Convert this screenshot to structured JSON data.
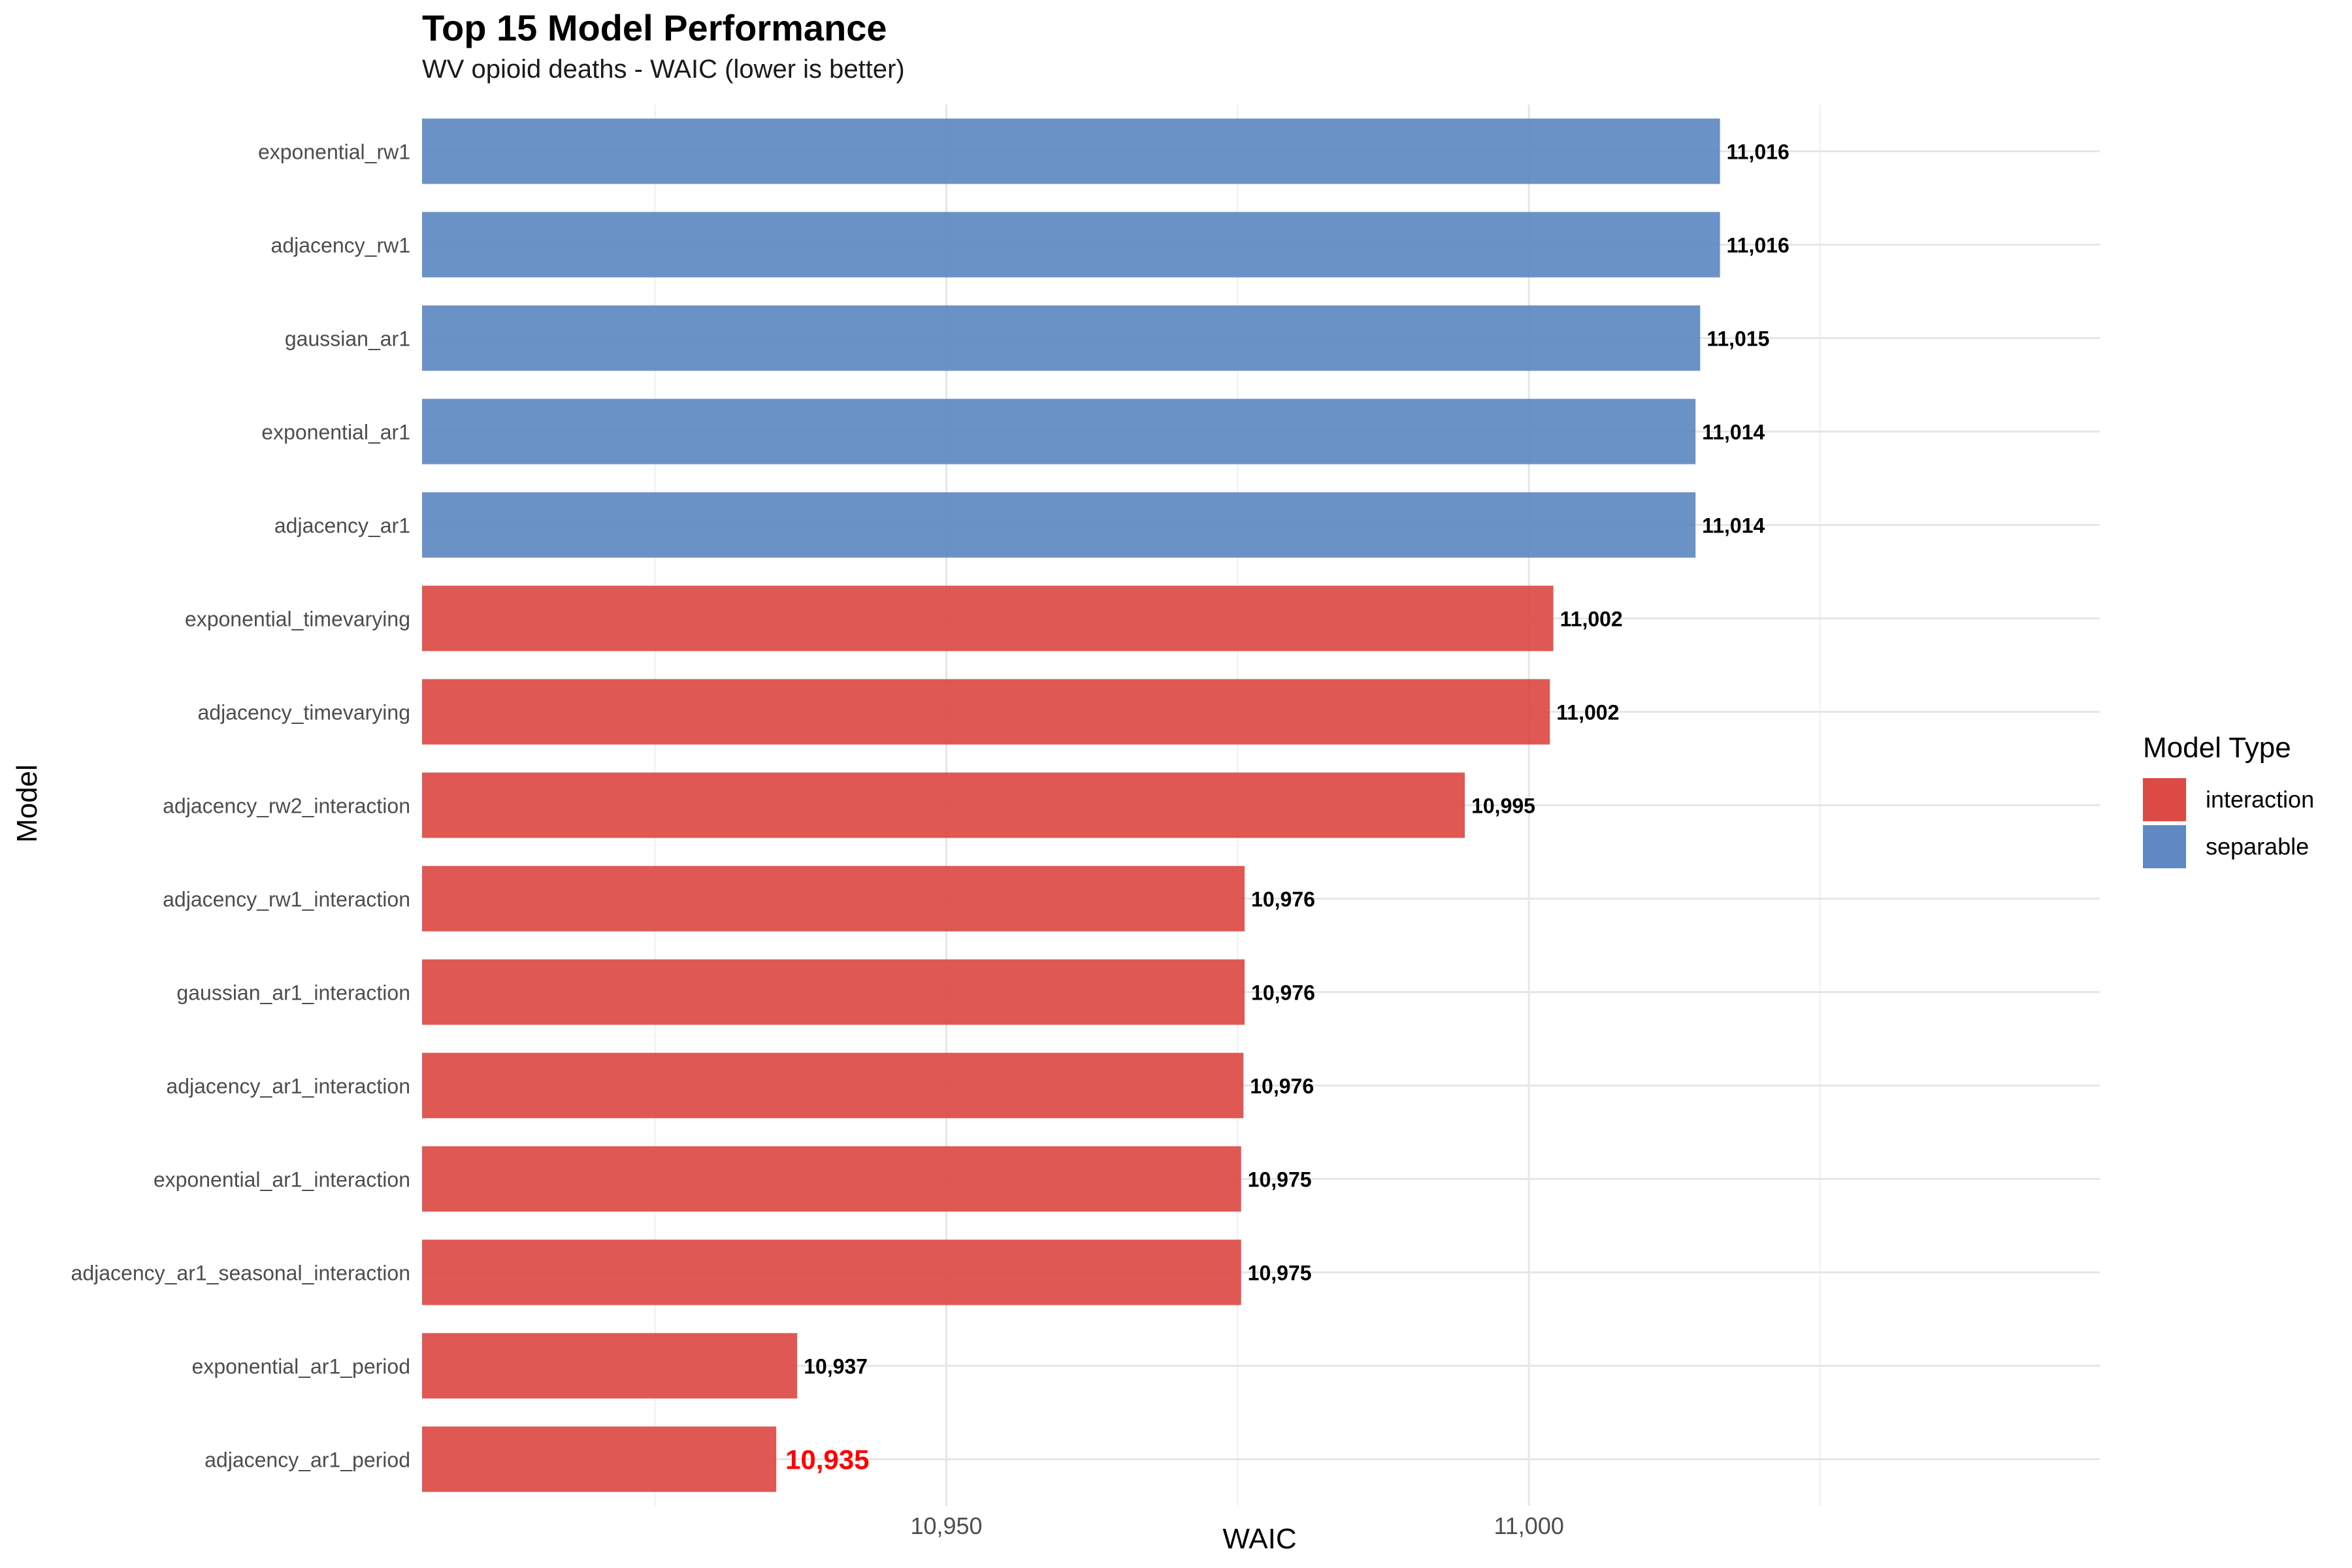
{
  "chart_data": {
    "type": "bar",
    "orientation": "horizontal",
    "title": "Top 15 Model Performance",
    "subtitle": "WV opioid deaths - WAIC (lower is better)",
    "xlabel": "WAIC",
    "ylabel": "Model",
    "xlim": [
      10905,
      11049
    ],
    "x_ticks": [
      10950,
      11000
    ],
    "x_tick_labels": [
      "10,950",
      "11,000"
    ],
    "grid": true,
    "legend": {
      "title": "Model Type",
      "position": "right",
      "entries": [
        {
          "label": "interaction",
          "color": "#DC4A45"
        },
        {
          "label": "separable",
          "color": "#5E89C2"
        }
      ]
    },
    "bars": [
      {
        "model": "exponential_rw1",
        "type": "separable",
        "value": 11016.4,
        "label": "11,016"
      },
      {
        "model": "adjacency_rw1",
        "type": "separable",
        "value": 11016.4,
        "label": "11,016"
      },
      {
        "model": "gaussian_ar1",
        "type": "separable",
        "value": 11014.7,
        "label": "11,015"
      },
      {
        "model": "exponential_ar1",
        "type": "separable",
        "value": 11014.3,
        "label": "11,014"
      },
      {
        "model": "adjacency_ar1",
        "type": "separable",
        "value": 11014.3,
        "label": "11,014"
      },
      {
        "model": "exponential_timevarying",
        "type": "interaction",
        "value": 11002.1,
        "label": "11,002"
      },
      {
        "model": "adjacency_timevarying",
        "type": "interaction",
        "value": 11001.8,
        "label": "11,002"
      },
      {
        "model": "adjacency_rw2_interaction",
        "type": "interaction",
        "value": 10994.5,
        "label": "10,995"
      },
      {
        "model": "adjacency_rw1_interaction",
        "type": "interaction",
        "value": 10975.6,
        "label": "10,976"
      },
      {
        "model": "gaussian_ar1_interaction",
        "type": "interaction",
        "value": 10975.6,
        "label": "10,976"
      },
      {
        "model": "adjacency_ar1_interaction",
        "type": "interaction",
        "value": 10975.5,
        "label": "10,976"
      },
      {
        "model": "exponential_ar1_interaction",
        "type": "interaction",
        "value": 10975.3,
        "label": "10,975"
      },
      {
        "model": "adjacency_ar1_seasonal_interaction",
        "type": "interaction",
        "value": 10975.3,
        "label": "10,975"
      },
      {
        "model": "exponential_ar1_period",
        "type": "interaction",
        "value": 10937.2,
        "label": "10,937"
      },
      {
        "model": "adjacency_ar1_period",
        "type": "interaction",
        "value": 10935.4,
        "label": "10,935",
        "highlight": true,
        "highlight_color": "#FF0000"
      }
    ]
  }
}
